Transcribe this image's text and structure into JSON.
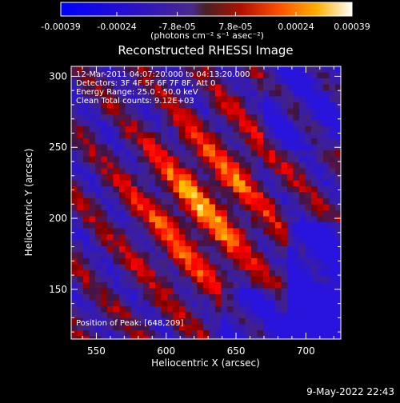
{
  "colorbar": {
    "tick_labels": [
      "-0.00039",
      "-0.00024",
      "-7.8e-05",
      "7.8e-05",
      "0.00024",
      "0.00039"
    ],
    "tick_values": [
      -0.00039,
      -0.00024,
      -7.8e-05,
      7.8e-05,
      0.00024,
      0.00039
    ],
    "range": [
      -0.00039,
      0.00039
    ],
    "unit_label": "(photons cm⁻² s⁻¹ asec⁻²)"
  },
  "plot": {
    "title": "Reconstructed RHESSI Image",
    "xlabel": "Heliocentric X (arcsec)",
    "ylabel": "Heliocentric Y (arcsec)",
    "xlim": [
      532,
      725
    ],
    "ylim": [
      115,
      307
    ],
    "x_ticks": [
      550,
      600,
      650,
      700
    ],
    "y_ticks": [
      150,
      200,
      250,
      300
    ],
    "annotations": [
      "12-Mar-2011 04:07:20.000 to 04:13:20.000",
      "Detectors: 3F 4F 5F 6F 7F 8F, Att 0",
      "Energy Range: 25.0 - 50.0 keV",
      "Clean     Total counts: 9.12E+03"
    ],
    "position_note": "Position of Peak: [648,209]"
  },
  "footer": {
    "timestamp": "9-May-2022 22:43"
  }
}
